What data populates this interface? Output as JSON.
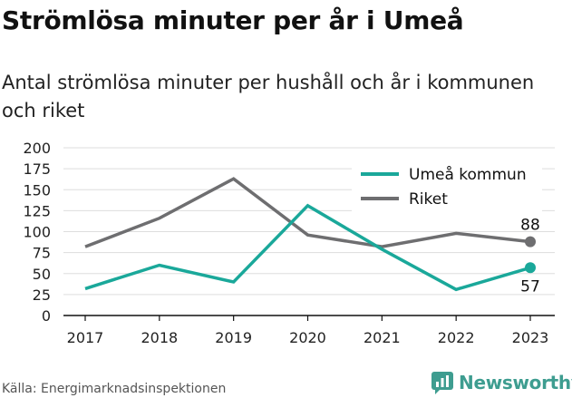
{
  "title": "Strömlösa minuter per år i Umeå",
  "subtitle": "Antal strömlösa minuter per hushåll och år i kommunen och riket",
  "source": "Källa: Energimarknadsinspektionen",
  "brand": {
    "name": "Newsworthy",
    "icon": "newsworthy-logo-icon",
    "color": "#3e9d90"
  },
  "chart_data": {
    "type": "line",
    "x": [
      "2017",
      "2018",
      "2019",
      "2020",
      "2021",
      "2022",
      "2023"
    ],
    "ylim": [
      0,
      200
    ],
    "yticks": [
      "0",
      "25",
      "50",
      "75",
      "100",
      "125",
      "150",
      "175",
      "200"
    ],
    "grid": true,
    "legend_position": "top-right",
    "series": [
      {
        "name": "Umeå kommun",
        "color": "#1aa89a",
        "values": [
          32,
          60,
          40,
          131,
          79,
          31,
          57
        ],
        "end_label": "57"
      },
      {
        "name": "Riket",
        "color": "#6e6e70",
        "values": [
          82,
          116,
          163,
          96,
          82,
          98,
          88
        ],
        "end_label": "88"
      }
    ]
  }
}
